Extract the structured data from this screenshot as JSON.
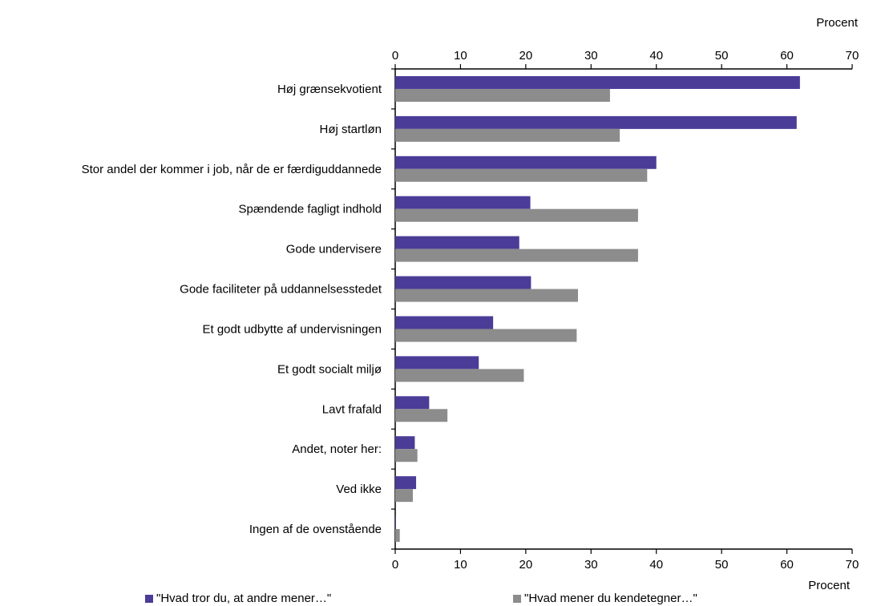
{
  "chart_data": {
    "type": "bar",
    "orientation": "horizontal",
    "categories": [
      "Høj grænsekvotient",
      "Høj startløn",
      "Stor andel der kommer i job, når de er færdiguddannede",
      "Spændende fagligt indhold",
      "Gode undervisere",
      "Gode faciliteter på uddannelsesstedet",
      "Et godt udbytte af undervisningen",
      "Et godt socialt miljø",
      "Lavt frafald",
      "Andet, noter her:",
      "Ved ikke",
      "Ingen af de ovenstående"
    ],
    "series": [
      {
        "name": "\"Hvad tror du, at andre mener…\"",
        "color": "#4b3c97",
        "values": [
          62.0,
          61.5,
          40.0,
          20.7,
          19.0,
          20.8,
          15.0,
          12.8,
          5.2,
          3.0,
          3.2,
          0.1
        ]
      },
      {
        "name": "\"Hvad mener du kendetegner…\"",
        "color": "#8c8c8c",
        "values": [
          32.9,
          34.4,
          38.6,
          37.2,
          37.2,
          28.0,
          27.8,
          19.7,
          8.0,
          3.4,
          2.7,
          0.7
        ]
      }
    ],
    "xlim": [
      0,
      70
    ],
    "xticks": [
      0,
      10,
      20,
      30,
      40,
      50,
      60,
      70
    ],
    "xlabel": "Procent",
    "xaxis_top_label": "Procent",
    "xaxis_bottom_label": "Procent",
    "legend_position": "bottom",
    "grid": false
  }
}
